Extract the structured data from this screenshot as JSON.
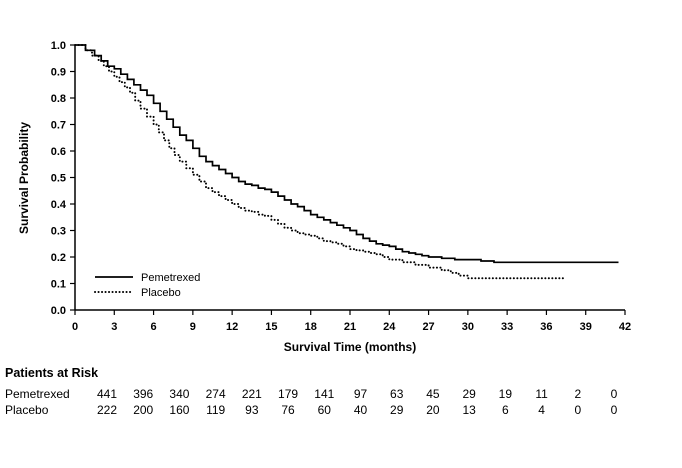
{
  "chart_data": {
    "type": "line",
    "subtype": "kaplan-meier-step",
    "title": "",
    "xlabel": "Survival Time (months)",
    "ylabel": "Survival Probability",
    "xlim": [
      0,
      42
    ],
    "ylim": [
      0.0,
      1.0
    ],
    "x_ticks": [
      "0",
      "3",
      "6",
      "9",
      "12",
      "15",
      "18",
      "21",
      "24",
      "27",
      "30",
      "33",
      "36",
      "39",
      "42"
    ],
    "y_ticks": [
      "0.0",
      "0.1",
      "0.2",
      "0.3",
      "0.4",
      "0.5",
      "0.6",
      "0.7",
      "0.8",
      "0.9",
      "1.0"
    ],
    "grid": false,
    "legend_position": "inside-lower-left",
    "line_color": "#000000",
    "series": [
      {
        "name": "Pemetrexed",
        "line_style": "solid",
        "x": [
          0,
          0.8,
          1.5,
          2,
          2.5,
          3,
          3.5,
          4,
          4.5,
          5,
          5.5,
          6,
          6.5,
          7,
          7.5,
          8,
          8.5,
          9,
          9.5,
          10,
          10.5,
          11,
          11.5,
          12,
          12.5,
          13,
          13.5,
          14,
          14.5,
          15,
          15.5,
          16,
          16.5,
          17,
          17.5,
          18,
          18.5,
          19,
          19.5,
          20,
          20.5,
          21,
          21.5,
          22,
          22.5,
          23,
          23.5,
          24,
          24.5,
          25,
          25.5,
          26,
          26.5,
          27,
          28,
          29,
          30,
          31,
          32,
          41.5
        ],
        "y": [
          1.0,
          0.98,
          0.96,
          0.94,
          0.92,
          0.91,
          0.89,
          0.87,
          0.85,
          0.83,
          0.81,
          0.78,
          0.75,
          0.72,
          0.69,
          0.66,
          0.64,
          0.61,
          0.58,
          0.56,
          0.545,
          0.53,
          0.515,
          0.5,
          0.485,
          0.475,
          0.47,
          0.46,
          0.455,
          0.445,
          0.43,
          0.415,
          0.4,
          0.39,
          0.375,
          0.36,
          0.35,
          0.34,
          0.33,
          0.32,
          0.31,
          0.3,
          0.285,
          0.27,
          0.26,
          0.25,
          0.245,
          0.24,
          0.23,
          0.22,
          0.215,
          0.21,
          0.205,
          0.2,
          0.195,
          0.19,
          0.19,
          0.185,
          0.18,
          0.18
        ]
      },
      {
        "name": "Placebo",
        "line_style": "dotted",
        "x": [
          0,
          0.8,
          1.3,
          1.8,
          2.2,
          2.6,
          3,
          3.4,
          3.8,
          4.2,
          4.6,
          5,
          5.5,
          6,
          6.4,
          6.8,
          7.2,
          7.6,
          8,
          8.5,
          9,
          9.5,
          10,
          10.5,
          11,
          11.5,
          12,
          12.5,
          13,
          13.5,
          14,
          14.5,
          15,
          15.5,
          16,
          16.5,
          17,
          17.5,
          18,
          18.5,
          19,
          19.5,
          20,
          20.5,
          21,
          21.5,
          22,
          22.5,
          23,
          23.5,
          24,
          25,
          26,
          27,
          28,
          28.7,
          29.3,
          30,
          37.5
        ],
        "y": [
          1.0,
          0.98,
          0.96,
          0.94,
          0.92,
          0.9,
          0.88,
          0.86,
          0.84,
          0.82,
          0.79,
          0.76,
          0.73,
          0.7,
          0.67,
          0.64,
          0.61,
          0.585,
          0.56,
          0.535,
          0.51,
          0.485,
          0.46,
          0.445,
          0.43,
          0.415,
          0.4,
          0.385,
          0.375,
          0.37,
          0.36,
          0.355,
          0.34,
          0.325,
          0.31,
          0.3,
          0.29,
          0.285,
          0.28,
          0.27,
          0.26,
          0.255,
          0.25,
          0.24,
          0.23,
          0.225,
          0.22,
          0.215,
          0.21,
          0.2,
          0.19,
          0.18,
          0.17,
          0.16,
          0.15,
          0.14,
          0.13,
          0.12,
          0.12
        ]
      }
    ]
  },
  "risk_table": {
    "title": "Patients at Risk",
    "time_points": [
      0,
      3,
      6,
      9,
      12,
      15,
      18,
      21,
      24,
      27,
      30,
      33,
      36,
      39,
      42
    ],
    "rows": [
      {
        "label": "Pemetrexed",
        "values": [
          "441",
          "396",
          "340",
          "274",
          "221",
          "179",
          "141",
          "97",
          "63",
          "45",
          "29",
          "19",
          "11",
          "2",
          "0"
        ]
      },
      {
        "label": "Placebo",
        "values": [
          "222",
          "200",
          "160",
          "119",
          "93",
          "76",
          "60",
          "40",
          "29",
          "20",
          "13",
          "6",
          "4",
          "0",
          "0"
        ]
      }
    ]
  },
  "colors": {
    "stroke": "#000000",
    "background": "#ffffff"
  }
}
